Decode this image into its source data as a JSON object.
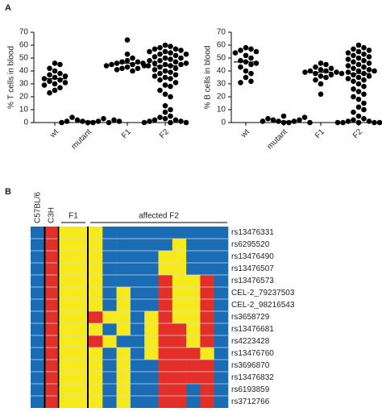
{
  "chart_data": [
    {
      "type": "dotplot",
      "panel": "A",
      "y_label": "% T cells in blood",
      "categories": [
        "wt",
        "mutant",
        "F1",
        "F2"
      ],
      "points": [
        [
          46,
          45,
          42,
          40,
          38,
          37,
          36,
          35,
          34,
          33,
          32,
          31,
          30,
          29,
          27,
          25,
          23
        ],
        [
          0,
          0,
          1,
          1,
          2,
          3,
          4,
          0,
          1,
          2,
          0,
          1
        ],
        [
          64,
          53,
          50,
          48,
          47,
          47,
          46,
          46,
          45,
          45,
          44,
          44,
          43,
          42,
          42,
          41,
          40
        ],
        [
          60,
          59,
          58,
          57,
          57,
          56,
          55,
          55,
          54,
          53,
          53,
          52,
          51,
          50,
          50,
          49,
          48,
          48,
          47,
          46,
          46,
          45,
          45,
          44,
          44,
          43,
          42,
          41,
          40,
          39,
          38,
          37,
          36,
          35,
          34,
          33,
          31,
          29,
          28,
          25,
          22,
          20,
          13,
          10,
          8,
          5,
          4,
          3,
          2,
          2,
          1,
          1,
          0,
          0,
          0
        ]
      ],
      "means": [
        34,
        1,
        46,
        44
      ],
      "color": "#000000",
      "ylim": [
        0,
        70
      ],
      "yticks": [
        0,
        10,
        20,
        30,
        40,
        50,
        60,
        70
      ]
    },
    {
      "type": "dotplot",
      "y_label": "% B cells in blood",
      "categories": [
        "wt",
        "mutant",
        "F1",
        "F2"
      ],
      "points": [
        [
          58,
          57,
          56,
          55,
          54,
          52,
          50,
          48,
          47,
          46,
          45,
          43,
          40,
          38,
          35,
          32,
          31
        ],
        [
          0,
          0,
          1,
          1,
          2,
          2,
          3,
          4,
          5,
          1,
          0
        ],
        [
          46,
          45,
          43,
          42,
          41,
          40,
          40,
          39,
          39,
          38,
          38,
          37,
          36,
          35,
          33,
          30,
          22
        ],
        [
          60,
          58,
          57,
          56,
          55,
          54,
          53,
          52,
          51,
          50,
          49,
          48,
          47,
          46,
          45,
          44,
          43,
          42,
          41,
          40,
          40,
          39,
          38,
          37,
          36,
          35,
          34,
          33,
          32,
          30,
          28,
          26,
          24,
          22,
          20,
          18,
          15,
          12,
          10,
          8,
          5,
          3,
          2,
          1,
          1,
          0,
          0,
          0,
          0,
          0
        ]
      ],
      "means": [
        47,
        1,
        39,
        38
      ],
      "color": "#000000",
      "ylim": [
        0,
        70
      ],
      "yticks": [
        0,
        10,
        20,
        30,
        40,
        50,
        60,
        70
      ]
    },
    {
      "type": "genotype-grid",
      "panel": "B",
      "column_groups": [
        "C57BL/6",
        "C3H",
        "F1",
        "affected F2"
      ],
      "rows": [
        "rs13476331",
        "rs6295520",
        "rs13476490",
        "rs13476507",
        "rs13476573",
        "CEL-2_79237503",
        "CEL-2_98216543",
        "rs3658729",
        "rs13476681",
        "rs4223428",
        "rs13476760",
        "rs3696870",
        "rs13476832",
        "rs6193859",
        "rs3712766"
      ],
      "cells": [
        [
          "#1a6db5",
          "#e32f27",
          "#f6ea1c",
          "#f6ea1c",
          "#f6ea1c",
          "#1a6db5",
          "#1a6db5",
          "#1a6db5",
          "#1a6db5",
          "#1a6db5",
          "#1a6db5",
          "#1a6db5",
          "#1a6db5",
          "#1a6db5"
        ],
        [
          "#1a6db5",
          "#e32f27",
          "#f6ea1c",
          "#f6ea1c",
          "#f6ea1c",
          "#1a6db5",
          "#1a6db5",
          "#1a6db5",
          "#1a6db5",
          "#1a6db5",
          "#f6ea1c",
          "#1a6db5",
          "#1a6db5",
          "#1a6db5"
        ],
        [
          "#1a6db5",
          "#e32f27",
          "#f6ea1c",
          "#f6ea1c",
          "#f6ea1c",
          "#1a6db5",
          "#1a6db5",
          "#1a6db5",
          "#1a6db5",
          "#f6ea1c",
          "#f6ea1c",
          "#1a6db5",
          "#1a6db5",
          "#1a6db5"
        ],
        [
          "#1a6db5",
          "#e32f27",
          "#f6ea1c",
          "#f6ea1c",
          "#f6ea1c",
          "#1a6db5",
          "#1a6db5",
          "#1a6db5",
          "#1a6db5",
          "#f6ea1c",
          "#f6ea1c",
          "#1a6db5",
          "#1a6db5",
          "#1a6db5"
        ],
        [
          "#1a6db5",
          "#e32f27",
          "#f6ea1c",
          "#f6ea1c",
          "#f6ea1c",
          "#1a6db5",
          "#1a6db5",
          "#1a6db5",
          "#1a6db5",
          "#e32f27",
          "#f6ea1c",
          "#f6ea1c",
          "#e32f27",
          "#1a6db5"
        ],
        [
          "#1a6db5",
          "#e32f27",
          "#f6ea1c",
          "#f6ea1c",
          "#f6ea1c",
          "#1a6db5",
          "#f6ea1c",
          "#1a6db5",
          "#1a6db5",
          "#e32f27",
          "#f6ea1c",
          "#f6ea1c",
          "#e32f27",
          "#1a6db5"
        ],
        [
          "#1a6db5",
          "#e32f27",
          "#f6ea1c",
          "#f6ea1c",
          "#f6ea1c",
          "#1a6db5",
          "#f6ea1c",
          "#1a6db5",
          "#1a6db5",
          "#e32f27",
          "#f6ea1c",
          "#f6ea1c",
          "#e32f27",
          "#1a6db5"
        ],
        [
          "#1a6db5",
          "#e32f27",
          "#f6ea1c",
          "#f6ea1c",
          "#e32f27",
          "#f6ea1c",
          "#f6ea1c",
          "#1a6db5",
          "#f6ea1c",
          "#e32f27",
          "#f6ea1c",
          "#f6ea1c",
          "#e32f27",
          "#1a6db5"
        ],
        [
          "#1a6db5",
          "#e32f27",
          "#f6ea1c",
          "#f6ea1c",
          "#f6ea1c",
          "#1a6db5",
          "#f6ea1c",
          "#1a6db5",
          "#f6ea1c",
          "#e32f27",
          "#e32f27",
          "#f6ea1c",
          "#e32f27",
          "#1a6db5"
        ],
        [
          "#1a6db5",
          "#e32f27",
          "#f6ea1c",
          "#f6ea1c",
          "#e32f27",
          "#f6ea1c",
          "#1a6db5",
          "#1a6db5",
          "#f6ea1c",
          "#e32f27",
          "#e32f27",
          "#f6ea1c",
          "#e32f27",
          "#1a6db5"
        ],
        [
          "#1a6db5",
          "#e32f27",
          "#f6ea1c",
          "#f6ea1c",
          "#f6ea1c",
          "#1a6db5",
          "#f6ea1c",
          "#1a6db5",
          "#f6ea1c",
          "#e32f27",
          "#e32f27",
          "#e32f27",
          "#f6ea1c",
          "#1a6db5"
        ],
        [
          "#1a6db5",
          "#e32f27",
          "#f6ea1c",
          "#f6ea1c",
          "#f6ea1c",
          "#1a6db5",
          "#f6ea1c",
          "#1a6db5",
          "#1a6db5",
          "#e32f27",
          "#e32f27",
          "#e32f27",
          "#e32f27",
          "#1a6db5"
        ],
        [
          "#1a6db5",
          "#e32f27",
          "#f6ea1c",
          "#f6ea1c",
          "#f6ea1c",
          "#1a6db5",
          "#f6ea1c",
          "#1a6db5",
          "#1a6db5",
          "#e32f27",
          "#e32f27",
          "#e32f27",
          "#e32f27",
          "#1a6db5"
        ],
        [
          "#1a6db5",
          "#e32f27",
          "#f6ea1c",
          "#f6ea1c",
          "#f6ea1c",
          "#1a6db5",
          "#f6ea1c",
          "#1a6db5",
          "#1a6db5",
          "#e32f27",
          "#e32f27",
          "#1a6db5",
          "#e32f27",
          "#1a6db5"
        ],
        [
          "#1a6db5",
          "#e32f27",
          "#f6ea1c",
          "#f6ea1c",
          "#f6ea1c",
          "#1a6db5",
          "#f6ea1c",
          "#1a6db5",
          "#1a6db5",
          "#e32f27",
          "#e32f27",
          "#1a6db5",
          "#e32f27",
          "#1a6db5"
        ]
      ]
    }
  ]
}
